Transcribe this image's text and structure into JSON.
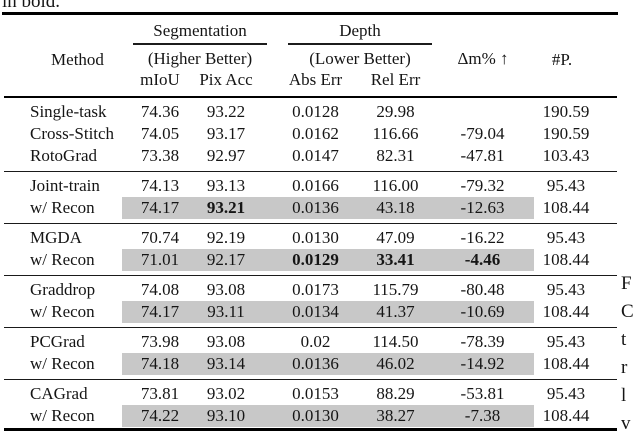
{
  "caption_fragment": "in bold.",
  "side_text": {
    "letters": [
      "F",
      "C",
      "t",
      "r",
      "l",
      "v"
    ]
  },
  "table": {
    "highlight_color": "#c8c8c8",
    "col_groups": [
      {
        "title": "Segmentation",
        "subtitle": "(Higher Better)"
      },
      {
        "title": "Depth",
        "subtitle": "(Lower Better)"
      }
    ],
    "headers": {
      "method": "Method",
      "miou": "mIoU",
      "pixacc": "Pix Acc",
      "abserr": "Abs Err",
      "relerr": "Rel Err",
      "dm": "Δm% ↑",
      "params": "#P."
    },
    "sections": [
      {
        "rows": [
          {
            "method": "Single-task",
            "miou": "74.36",
            "pixacc": "93.22",
            "abserr": "0.0128",
            "relerr": "29.98",
            "dm": "",
            "params": "190.59",
            "highlight": false,
            "bold": []
          },
          {
            "method": "Cross-Stitch",
            "miou": "74.05",
            "pixacc": "93.17",
            "abserr": "0.0162",
            "relerr": "116.66",
            "dm": "-79.04",
            "params": "190.59",
            "highlight": false,
            "bold": []
          },
          {
            "method": "RotoGrad",
            "miou": "73.38",
            "pixacc": "92.97",
            "abserr": "0.0147",
            "relerr": "82.31",
            "dm": "-47.81",
            "params": "103.43",
            "highlight": false,
            "bold": []
          }
        ]
      },
      {
        "rows": [
          {
            "method": "Joint-train",
            "miou": "74.13",
            "pixacc": "93.13",
            "abserr": "0.0166",
            "relerr": "116.00",
            "dm": "-79.32",
            "params": "95.43",
            "highlight": false,
            "bold": []
          },
          {
            "method": "w/ Recon",
            "miou": "74.17",
            "pixacc": "93.21",
            "abserr": "0.0136",
            "relerr": "43.18",
            "dm": "-12.63",
            "params": "108.44",
            "highlight": true,
            "bold": [
              "pixacc"
            ]
          }
        ]
      },
      {
        "rows": [
          {
            "method": "MGDA",
            "miou": "70.74",
            "pixacc": "92.19",
            "abserr": "0.0130",
            "relerr": "47.09",
            "dm": "-16.22",
            "params": "95.43",
            "highlight": false,
            "bold": []
          },
          {
            "method": "w/ Recon",
            "miou": "71.01",
            "pixacc": "92.17",
            "abserr": "0.0129",
            "relerr": "33.41",
            "dm": "-4.46",
            "params": "108.44",
            "highlight": true,
            "bold": [
              "abserr",
              "relerr",
              "dm"
            ]
          }
        ]
      },
      {
        "rows": [
          {
            "method": "Graddrop",
            "miou": "74.08",
            "pixacc": "93.08",
            "abserr": "0.0173",
            "relerr": "115.79",
            "dm": "-80.48",
            "params": "95.43",
            "highlight": false,
            "bold": []
          },
          {
            "method": "w/ Recon",
            "miou": "74.17",
            "pixacc": "93.11",
            "abserr": "0.0134",
            "relerr": "41.37",
            "dm": "-10.69",
            "params": "108.44",
            "highlight": true,
            "bold": []
          }
        ]
      },
      {
        "rows": [
          {
            "method": "PCGrad",
            "miou": "73.98",
            "pixacc": "93.08",
            "abserr": "0.02",
            "relerr": "114.50",
            "dm": "-78.39",
            "params": "95.43",
            "highlight": false,
            "bold": []
          },
          {
            "method": "w/ Recon",
            "miou": "74.18",
            "pixacc": "93.14",
            "abserr": "0.0136",
            "relerr": "46.02",
            "dm": "-14.92",
            "params": "108.44",
            "highlight": true,
            "bold": []
          }
        ]
      },
      {
        "rows": [
          {
            "method": "CAGrad",
            "miou": "73.81",
            "pixacc": "93.02",
            "abserr": "0.0153",
            "relerr": "88.29",
            "dm": "-53.81",
            "params": "95.43",
            "highlight": false,
            "bold": []
          },
          {
            "method": "w/ Recon",
            "miou": "74.22",
            "pixacc": "93.10",
            "abserr": "0.0130",
            "relerr": "38.27",
            "dm": "-7.38",
            "params": "108.44",
            "highlight": true,
            "bold": []
          }
        ]
      }
    ]
  }
}
